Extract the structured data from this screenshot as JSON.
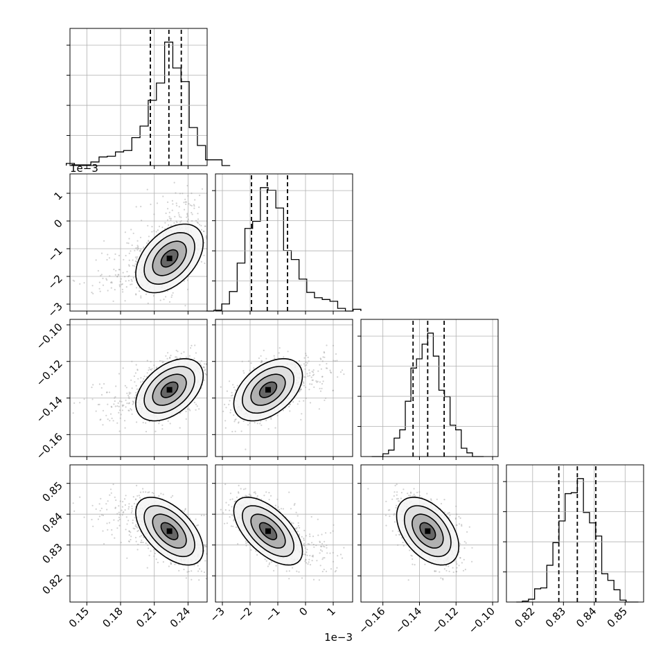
{
  "chart_data": {
    "type": "corner",
    "parameters": [
      {
        "range": [
          0.135,
          0.257
        ],
        "ticks": [
          0.15,
          0.18,
          0.21,
          0.24
        ],
        "tick_labels": [
          "0.15",
          "0.18",
          "0.21",
          "0.24"
        ],
        "offset_label": "",
        "mean": 0.2235,
        "sd": 0.015,
        "tail": "left",
        "quantiles": [
          0.2065,
          0.223,
          0.234
        ]
      },
      {
        "range": [
          -3.25,
          1.7
        ],
        "ticks": [
          -3,
          -2,
          -1,
          0,
          1
        ],
        "tick_labels": [
          "−3",
          "−2",
          "−1",
          "0",
          "1"
        ],
        "offset_label": "1e−3",
        "mean": -1.35,
        "sd": 0.62,
        "tail": "right",
        "quantiles": [
          -1.95,
          -1.38,
          -0.65
        ]
      },
      {
        "range": [
          -0.172,
          -0.097
        ],
        "ticks": [
          -0.16,
          -0.14,
          -0.12,
          -0.1
        ],
        "tick_labels": [
          "−0.16",
          "−0.14",
          "−0.12",
          "−0.10"
        ],
        "offset_label": "",
        "mean": -0.1355,
        "sd": 0.0085,
        "tail": "none",
        "quantiles": [
          -0.1435,
          -0.1355,
          -0.1265
        ]
      },
      {
        "range": [
          0.8115,
          0.856
        ],
        "ticks": [
          0.82,
          0.83,
          0.84,
          0.85
        ],
        "tick_labels": [
          "0.82",
          "0.83",
          "0.84",
          "0.85"
        ],
        "offset_label": "",
        "mean": 0.8345,
        "sd": 0.0055,
        "tail": "none",
        "quantiles": [
          0.8285,
          0.8345,
          0.8405
        ]
      }
    ],
    "correlations": [
      [
        1,
        0.45,
        0.45,
        -0.55
      ],
      [
        0.45,
        1,
        0.45,
        -0.6
      ],
      [
        0.45,
        0.45,
        1,
        -0.45
      ],
      [
        -0.55,
        -0.6,
        -0.45,
        1
      ]
    ],
    "hist_bins": 20,
    "contour_levels_sigma": [
      0.5,
      1.0,
      1.5,
      2.0
    ],
    "scatter_points": 900,
    "grid": true,
    "quantile_line_style": "dashed",
    "colors": {
      "line": "#000000",
      "scatter": "#9a9a9a",
      "grid": "#b0b0b0",
      "background": "#ffffff"
    }
  }
}
